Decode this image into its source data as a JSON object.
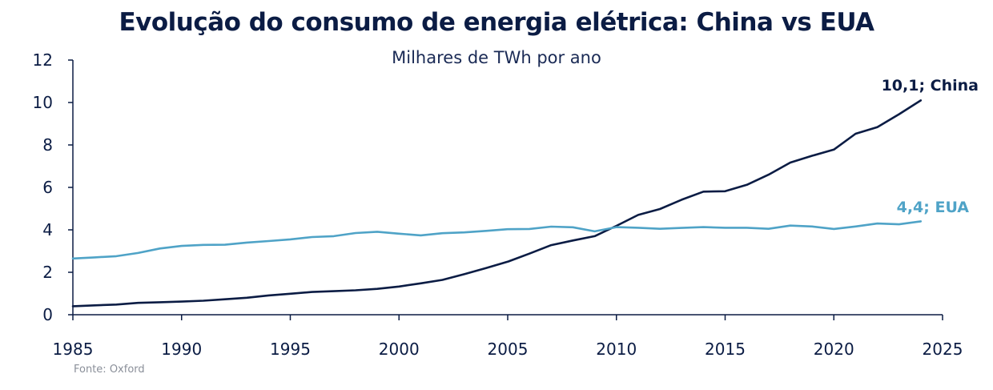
{
  "chart_data": {
    "type": "line",
    "title": "Evolução do consumo de energia elétrica: China vs EUA",
    "subtitle": "Milhares de TWh por ano",
    "xlabel": "",
    "ylabel": "",
    "xlim": [
      1985,
      2025
    ],
    "ylim": [
      0,
      12
    ],
    "x_ticks": [
      "1985",
      "1990",
      "1995",
      "2000",
      "2005",
      "2010",
      "2015",
      "2020",
      "2025"
    ],
    "y_ticks": [
      "0",
      "2",
      "4",
      "6",
      "8",
      "10",
      "12"
    ],
    "grid": false,
    "legend": "none",
    "x": [
      1985,
      1986,
      1987,
      1988,
      1989,
      1990,
      1991,
      1992,
      1993,
      1994,
      1995,
      1996,
      1997,
      1998,
      1999,
      2000,
      2001,
      2002,
      2003,
      2004,
      2005,
      2006,
      2007,
      2008,
      2009,
      2010,
      2011,
      2012,
      2013,
      2014,
      2015,
      2016,
      2017,
      2018,
      2019,
      2020,
      2021,
      2022,
      2023,
      2024
    ],
    "series": [
      {
        "end_label": "10,1; China",
        "color": "#0b1c44",
        "values": [
          0.4,
          0.44,
          0.48,
          0.56,
          0.59,
          0.62,
          0.66,
          0.73,
          0.8,
          0.91,
          0.99,
          1.07,
          1.11,
          1.15,
          1.22,
          1.33,
          1.48,
          1.64,
          1.91,
          2.2,
          2.5,
          2.88,
          3.28,
          3.5,
          3.7,
          4.19,
          4.7,
          4.98,
          5.42,
          5.8,
          5.82,
          6.12,
          6.6,
          7.17,
          7.49,
          7.78,
          8.53,
          8.84,
          9.45,
          10.1
        ]
      },
      {
        "end_label": "4,4; EUA",
        "color": "#4fa3c7",
        "values": [
          2.65,
          2.7,
          2.76,
          2.91,
          3.12,
          3.24,
          3.29,
          3.3,
          3.4,
          3.47,
          3.55,
          3.66,
          3.7,
          3.85,
          3.91,
          3.82,
          3.74,
          3.84,
          3.88,
          3.95,
          4.03,
          4.04,
          4.15,
          4.12,
          3.93,
          4.13,
          4.1,
          4.05,
          4.09,
          4.13,
          4.1,
          4.1,
          4.05,
          4.2,
          4.16,
          4.04,
          4.16,
          4.3,
          4.26,
          4.4
        ]
      }
    ]
  },
  "source": "Fonte: Oxford"
}
